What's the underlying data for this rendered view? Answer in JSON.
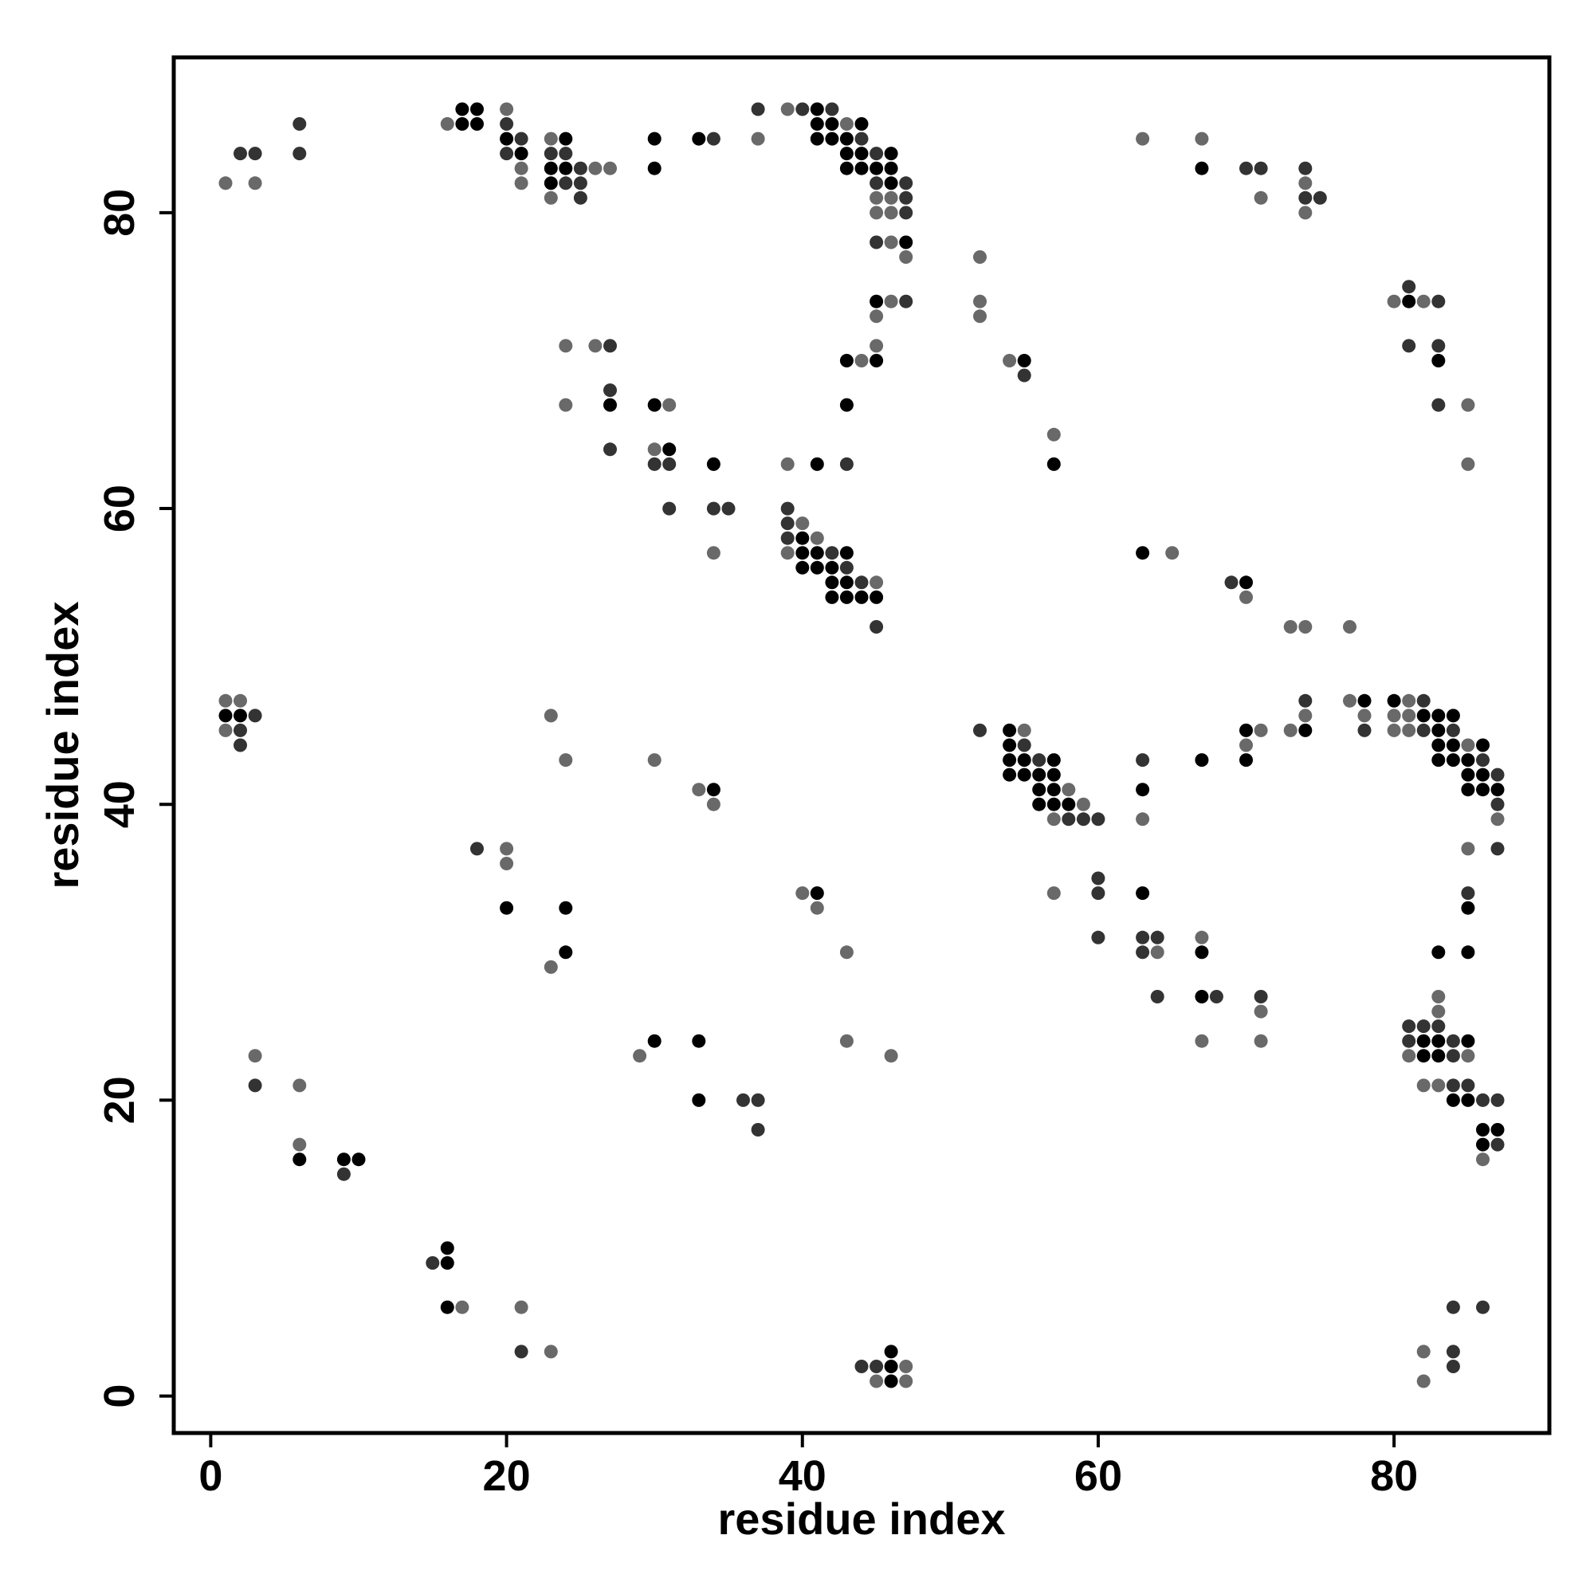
{
  "chart_data": {
    "type": "scatter",
    "title": "",
    "xlabel": "residue index",
    "ylabel": "residue index",
    "xlim": [
      -2.5,
      90.5
    ],
    "ylim": [
      -2.5,
      90.5
    ],
    "xticks": [
      0,
      20,
      40,
      60,
      80
    ],
    "yticks": [
      0,
      20,
      40,
      60,
      80
    ],
    "grid": false,
    "legend": "none",
    "marker_colors": {
      "1": "#000000",
      "2": "#333333",
      "3": "#696969"
    },
    "points": [
      [
        1,
        82,
        3
      ],
      [
        2,
        84,
        2
      ],
      [
        3,
        84,
        2
      ],
      [
        3,
        82,
        3
      ],
      [
        6,
        86,
        2
      ],
      [
        6,
        84,
        2
      ],
      [
        16,
        86,
        3
      ],
      [
        17,
        87,
        1
      ],
      [
        18,
        87,
        1
      ],
      [
        17,
        86,
        1
      ],
      [
        18,
        86,
        1
      ],
      [
        20,
        87,
        3
      ],
      [
        20,
        86,
        2
      ],
      [
        20,
        85,
        1
      ],
      [
        21,
        85,
        2
      ],
      [
        20,
        84,
        2
      ],
      [
        21,
        84,
        1
      ],
      [
        21,
        83,
        3
      ],
      [
        21,
        82,
        3
      ],
      [
        23,
        85,
        3
      ],
      [
        24,
        85,
        1
      ],
      [
        23,
        84,
        2
      ],
      [
        24,
        84,
        2
      ],
      [
        23,
        83,
        1
      ],
      [
        24,
        83,
        1
      ],
      [
        25,
        83,
        2
      ],
      [
        26,
        83,
        3
      ],
      [
        27,
        83,
        3
      ],
      [
        23,
        82,
        1
      ],
      [
        24,
        82,
        2
      ],
      [
        25,
        82,
        2
      ],
      [
        23,
        81,
        3
      ],
      [
        25,
        81,
        2
      ],
      [
        30,
        85,
        1
      ],
      [
        30,
        83,
        1
      ],
      [
        33,
        85,
        1
      ],
      [
        34,
        85,
        2
      ],
      [
        37,
        87,
        2
      ],
      [
        37,
        85,
        3
      ],
      [
        39,
        87,
        3
      ],
      [
        40,
        87,
        2
      ],
      [
        41,
        87,
        1
      ],
      [
        42,
        87,
        2
      ],
      [
        41,
        86,
        1
      ],
      [
        42,
        86,
        1
      ],
      [
        43,
        86,
        3
      ],
      [
        44,
        86,
        1
      ],
      [
        41,
        85,
        1
      ],
      [
        42,
        85,
        1
      ],
      [
        43,
        85,
        1
      ],
      [
        44,
        85,
        2
      ],
      [
        43,
        84,
        1
      ],
      [
        44,
        84,
        1
      ],
      [
        45,
        84,
        2
      ],
      [
        46,
        84,
        1
      ],
      [
        43,
        83,
        1
      ],
      [
        44,
        83,
        1
      ],
      [
        45,
        83,
        1
      ],
      [
        46,
        83,
        1
      ],
      [
        45,
        82,
        2
      ],
      [
        46,
        82,
        1
      ],
      [
        47,
        82,
        2
      ],
      [
        45,
        81,
        3
      ],
      [
        46,
        81,
        3
      ],
      [
        47,
        81,
        2
      ],
      [
        45,
        80,
        3
      ],
      [
        46,
        80,
        3
      ],
      [
        47,
        80,
        2
      ],
      [
        45,
        78,
        2
      ],
      [
        46,
        78,
        3
      ],
      [
        47,
        78,
        1
      ],
      [
        47,
        77,
        3
      ],
      [
        45,
        74,
        1
      ],
      [
        46,
        74,
        3
      ],
      [
        47,
        74,
        2
      ],
      [
        45,
        73,
        3
      ],
      [
        45,
        71,
        3
      ],
      [
        44,
        70,
        3
      ],
      [
        43,
        70,
        1
      ],
      [
        45,
        70,
        1
      ],
      [
        43,
        67,
        1
      ],
      [
        43,
        63,
        2
      ],
      [
        41,
        63,
        1
      ],
      [
        39,
        63,
        3
      ],
      [
        39,
        60,
        2
      ],
      [
        39,
        59,
        2
      ],
      [
        40,
        59,
        3
      ],
      [
        39,
        58,
        2
      ],
      [
        40,
        58,
        1
      ],
      [
        41,
        58,
        3
      ],
      [
        39,
        57,
        3
      ],
      [
        40,
        57,
        1
      ],
      [
        41,
        57,
        1
      ],
      [
        42,
        57,
        2
      ],
      [
        43,
        57,
        1
      ],
      [
        40,
        56,
        1
      ],
      [
        41,
        56,
        1
      ],
      [
        42,
        56,
        1
      ],
      [
        43,
        56,
        2
      ],
      [
        42,
        55,
        1
      ],
      [
        43,
        55,
        1
      ],
      [
        44,
        55,
        2
      ],
      [
        45,
        55,
        3
      ],
      [
        42,
        54,
        1
      ],
      [
        43,
        54,
        1
      ],
      [
        44,
        54,
        1
      ],
      [
        45,
        54,
        1
      ],
      [
        45,
        52,
        2
      ],
      [
        24,
        71,
        3
      ],
      [
        26,
        71,
        3
      ],
      [
        27,
        71,
        2
      ],
      [
        27,
        68,
        2
      ],
      [
        27,
        67,
        1
      ],
      [
        24,
        67,
        3
      ],
      [
        27,
        64,
        2
      ],
      [
        30,
        67,
        1
      ],
      [
        31,
        67,
        3
      ],
      [
        30,
        64,
        3
      ],
      [
        31,
        64,
        1
      ],
      [
        30,
        63,
        2
      ],
      [
        31,
        63,
        2
      ],
      [
        34,
        63,
        1
      ],
      [
        31,
        60,
        2
      ],
      [
        34,
        60,
        2
      ],
      [
        35,
        60,
        2
      ],
      [
        34,
        57,
        3
      ],
      [
        52,
        77,
        3
      ],
      [
        52,
        74,
        3
      ],
      [
        52,
        73,
        3
      ],
      [
        54,
        70,
        3
      ],
      [
        55,
        70,
        1
      ],
      [
        55,
        69,
        2
      ],
      [
        57,
        65,
        3
      ],
      [
        57,
        63,
        1
      ],
      [
        63,
        85,
        3
      ],
      [
        67,
        85,
        3
      ],
      [
        67,
        83,
        1
      ],
      [
        70,
        83,
        2
      ],
      [
        71,
        83,
        2
      ],
      [
        71,
        81,
        3
      ],
      [
        74,
        83,
        2
      ],
      [
        74,
        82,
        3
      ],
      [
        74,
        81,
        2
      ],
      [
        75,
        81,
        2
      ],
      [
        74,
        80,
        3
      ],
      [
        80,
        74,
        3
      ],
      [
        81,
        75,
        2
      ],
      [
        81,
        74,
        1
      ],
      [
        82,
        74,
        3
      ],
      [
        83,
        74,
        2
      ],
      [
        81,
        71,
        2
      ],
      [
        83,
        71,
        2
      ],
      [
        83,
        70,
        1
      ],
      [
        83,
        67,
        2
      ],
      [
        85,
        67,
        3
      ],
      [
        85,
        63,
        3
      ],
      [
        63,
        57,
        1
      ],
      [
        65,
        57,
        3
      ],
      [
        69,
        55,
        2
      ],
      [
        70,
        55,
        1
      ],
      [
        70,
        54,
        3
      ],
      [
        73,
        52,
        3
      ],
      [
        74,
        52,
        3
      ],
      [
        77,
        52,
        3
      ],
      [
        1,
        47,
        3
      ],
      [
        2,
        47,
        3
      ],
      [
        1,
        46,
        1
      ],
      [
        2,
        46,
        1
      ],
      [
        3,
        46,
        2
      ],
      [
        1,
        45,
        3
      ],
      [
        2,
        45,
        2
      ],
      [
        2,
        44,
        2
      ],
      [
        23,
        46,
        3
      ],
      [
        24,
        43,
        3
      ],
      [
        30,
        43,
        3
      ],
      [
        33,
        41,
        3
      ],
      [
        34,
        41,
        1
      ],
      [
        34,
        40,
        3
      ],
      [
        18,
        37,
        2
      ],
      [
        20,
        37,
        3
      ],
      [
        20,
        36,
        3
      ],
      [
        20,
        33,
        1
      ],
      [
        24,
        33,
        1
      ],
      [
        23,
        29,
        3
      ],
      [
        24,
        30,
        1
      ],
      [
        40,
        34,
        3
      ],
      [
        41,
        34,
        1
      ],
      [
        41,
        33,
        3
      ],
      [
        43,
        30,
        3
      ],
      [
        52,
        45,
        2
      ],
      [
        54,
        45,
        1
      ],
      [
        55,
        45,
        3
      ],
      [
        54,
        44,
        1
      ],
      [
        55,
        44,
        2
      ],
      [
        54,
        43,
        1
      ],
      [
        55,
        43,
        1
      ],
      [
        56,
        43,
        2
      ],
      [
        57,
        43,
        1
      ],
      [
        54,
        42,
        1
      ],
      [
        55,
        42,
        1
      ],
      [
        56,
        42,
        1
      ],
      [
        57,
        42,
        1
      ],
      [
        56,
        41,
        1
      ],
      [
        57,
        41,
        1
      ],
      [
        58,
        41,
        3
      ],
      [
        56,
        40,
        1
      ],
      [
        57,
        40,
        1
      ],
      [
        58,
        40,
        1
      ],
      [
        59,
        40,
        3
      ],
      [
        57,
        39,
        3
      ],
      [
        58,
        39,
        2
      ],
      [
        59,
        39,
        2
      ],
      [
        60,
        39,
        2
      ],
      [
        57,
        34,
        3
      ],
      [
        60,
        35,
        2
      ],
      [
        60,
        34,
        2
      ],
      [
        63,
        34,
        1
      ],
      [
        60,
        31,
        2
      ],
      [
        63,
        31,
        2
      ],
      [
        64,
        31,
        2
      ],
      [
        63,
        30,
        2
      ],
      [
        64,
        30,
        3
      ],
      [
        67,
        31,
        3
      ],
      [
        67,
        30,
        1
      ],
      [
        64,
        27,
        2
      ],
      [
        67,
        27,
        1
      ],
      [
        68,
        27,
        2
      ],
      [
        71,
        27,
        2
      ],
      [
        71,
        26,
        3
      ],
      [
        67,
        24,
        3
      ],
      [
        71,
        24,
        3
      ],
      [
        63,
        43,
        2
      ],
      [
        63,
        41,
        1
      ],
      [
        63,
        39,
        3
      ],
      [
        67,
        43,
        1
      ],
      [
        70,
        45,
        1
      ],
      [
        71,
        45,
        3
      ],
      [
        70,
        44,
        3
      ],
      [
        70,
        43,
        1
      ],
      [
        73,
        45,
        3
      ],
      [
        74,
        45,
        1
      ],
      [
        74,
        47,
        2
      ],
      [
        74,
        46,
        3
      ],
      [
        77,
        47,
        3
      ],
      [
        78,
        47,
        1
      ],
      [
        78,
        46,
        3
      ],
      [
        78,
        45,
        2
      ],
      [
        80,
        47,
        1
      ],
      [
        81,
        47,
        3
      ],
      [
        82,
        47,
        2
      ],
      [
        80,
        46,
        3
      ],
      [
        81,
        46,
        3
      ],
      [
        82,
        46,
        1
      ],
      [
        83,
        46,
        1
      ],
      [
        84,
        46,
        1
      ],
      [
        80,
        45,
        3
      ],
      [
        81,
        45,
        3
      ],
      [
        82,
        45,
        2
      ],
      [
        83,
        45,
        1
      ],
      [
        84,
        45,
        2
      ],
      [
        83,
        44,
        1
      ],
      [
        84,
        44,
        1
      ],
      [
        85,
        44,
        3
      ],
      [
        86,
        44,
        1
      ],
      [
        83,
        43,
        1
      ],
      [
        84,
        43,
        1
      ],
      [
        85,
        43,
        1
      ],
      [
        86,
        43,
        2
      ],
      [
        85,
        42,
        1
      ],
      [
        86,
        42,
        1
      ],
      [
        87,
        42,
        2
      ],
      [
        85,
        41,
        1
      ],
      [
        86,
        41,
        1
      ],
      [
        87,
        41,
        1
      ],
      [
        87,
        40,
        2
      ],
      [
        87,
        39,
        3
      ],
      [
        85,
        37,
        3
      ],
      [
        87,
        37,
        2
      ],
      [
        85,
        34,
        2
      ],
      [
        85,
        33,
        1
      ],
      [
        83,
        30,
        1
      ],
      [
        85,
        30,
        1
      ],
      [
        81,
        25,
        2
      ],
      [
        82,
        25,
        2
      ],
      [
        83,
        25,
        2
      ],
      [
        83,
        27,
        3
      ],
      [
        83,
        26,
        3
      ],
      [
        81,
        24,
        2
      ],
      [
        82,
        24,
        1
      ],
      [
        83,
        24,
        1
      ],
      [
        84,
        24,
        2
      ],
      [
        85,
        24,
        1
      ],
      [
        81,
        23,
        3
      ],
      [
        82,
        23,
        1
      ],
      [
        83,
        23,
        1
      ],
      [
        84,
        23,
        2
      ],
      [
        85,
        23,
        3
      ],
      [
        82,
        21,
        3
      ],
      [
        83,
        21,
        3
      ],
      [
        84,
        21,
        2
      ],
      [
        85,
        21,
        2
      ],
      [
        84,
        20,
        1
      ],
      [
        85,
        20,
        1
      ],
      [
        86,
        20,
        2
      ],
      [
        87,
        20,
        2
      ],
      [
        86,
        18,
        1
      ],
      [
        87,
        18,
        1
      ],
      [
        86,
        17,
        1
      ],
      [
        87,
        17,
        2
      ],
      [
        86,
        16,
        3
      ],
      [
        30,
        24,
        1
      ],
      [
        29,
        23,
        3
      ],
      [
        33,
        24,
        1
      ],
      [
        33,
        20,
        1
      ],
      [
        36,
        20,
        2
      ],
      [
        37,
        20,
        2
      ],
      [
        37,
        18,
        2
      ],
      [
        43,
        24,
        3
      ],
      [
        46,
        23,
        3
      ],
      [
        3,
        23,
        3
      ],
      [
        3,
        21,
        2
      ],
      [
        6,
        21,
        3
      ],
      [
        6,
        17,
        3
      ],
      [
        6,
        16,
        1
      ],
      [
        9,
        16,
        1
      ],
      [
        10,
        16,
        1
      ],
      [
        9,
        15,
        2
      ],
      [
        16,
        10,
        1
      ],
      [
        15,
        9,
        2
      ],
      [
        16,
        9,
        1
      ],
      [
        16,
        6,
        1
      ],
      [
        17,
        6,
        3
      ],
      [
        21,
        6,
        3
      ],
      [
        21,
        3,
        2
      ],
      [
        23,
        3,
        3
      ],
      [
        44,
        2,
        2
      ],
      [
        45,
        2,
        2
      ],
      [
        46,
        3,
        1
      ],
      [
        46,
        2,
        1
      ],
      [
        47,
        2,
        3
      ],
      [
        45,
        1,
        3
      ],
      [
        46,
        1,
        1
      ],
      [
        47,
        1,
        3
      ],
      [
        82,
        3,
        3
      ],
      [
        82,
        1,
        3
      ],
      [
        84,
        6,
        2
      ],
      [
        86,
        6,
        2
      ],
      [
        84,
        3,
        2
      ],
      [
        84,
        2,
        2
      ]
    ]
  }
}
